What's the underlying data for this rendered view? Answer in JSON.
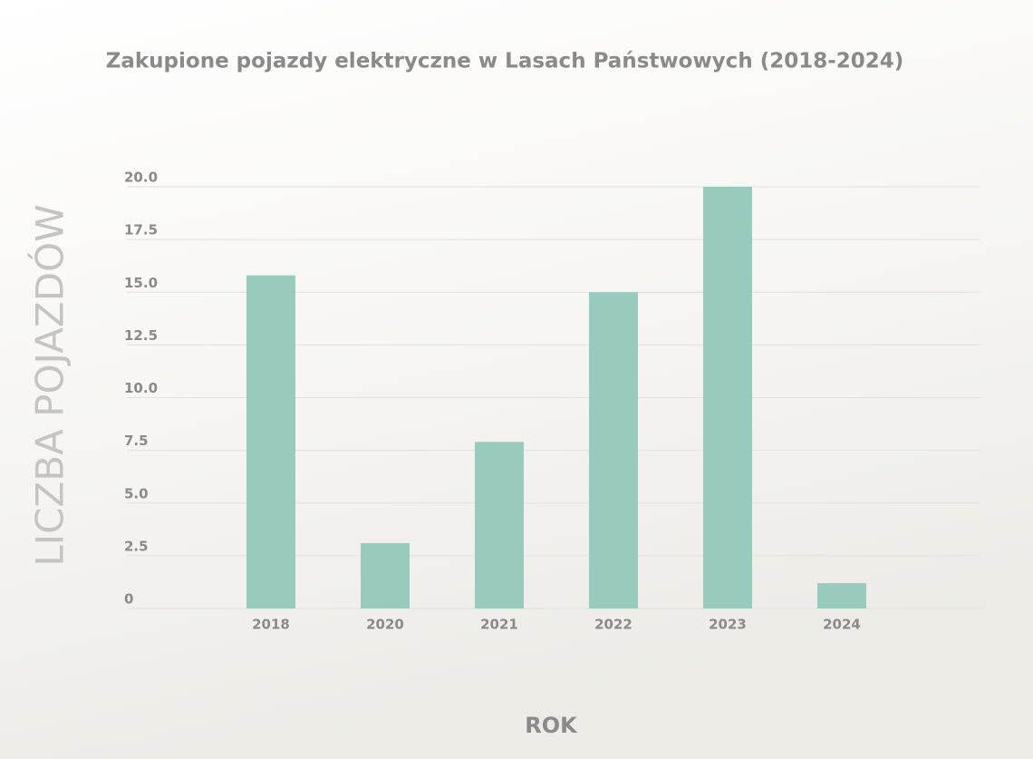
{
  "chart_data": {
    "type": "bar",
    "title": "Zakupione pojazdy elektryczne w Lasach Państwowych (2018-2024)",
    "x_label": "ROK",
    "y_label": "LICZBA POJAZDÓW",
    "categories": [
      "2018",
      "2020",
      "2021",
      "2022",
      "2023",
      "2024"
    ],
    "values": [
      15.8,
      3.1,
      7.9,
      15,
      20,
      1.2
    ],
    "color": "#98cbbe",
    "ylim": [
      0,
      20
    ],
    "yticks": [
      0,
      2.5,
      {
        "value": 5,
        "label": "5.0"
      },
      7.5,
      {
        "value": 10,
        "label": "10.0"
      },
      12.5,
      {
        "value": 15,
        "label": "15.0"
      },
      17.5,
      {
        "value": 20,
        "label": "20.0"
      }
    ],
    "grid": true
  }
}
